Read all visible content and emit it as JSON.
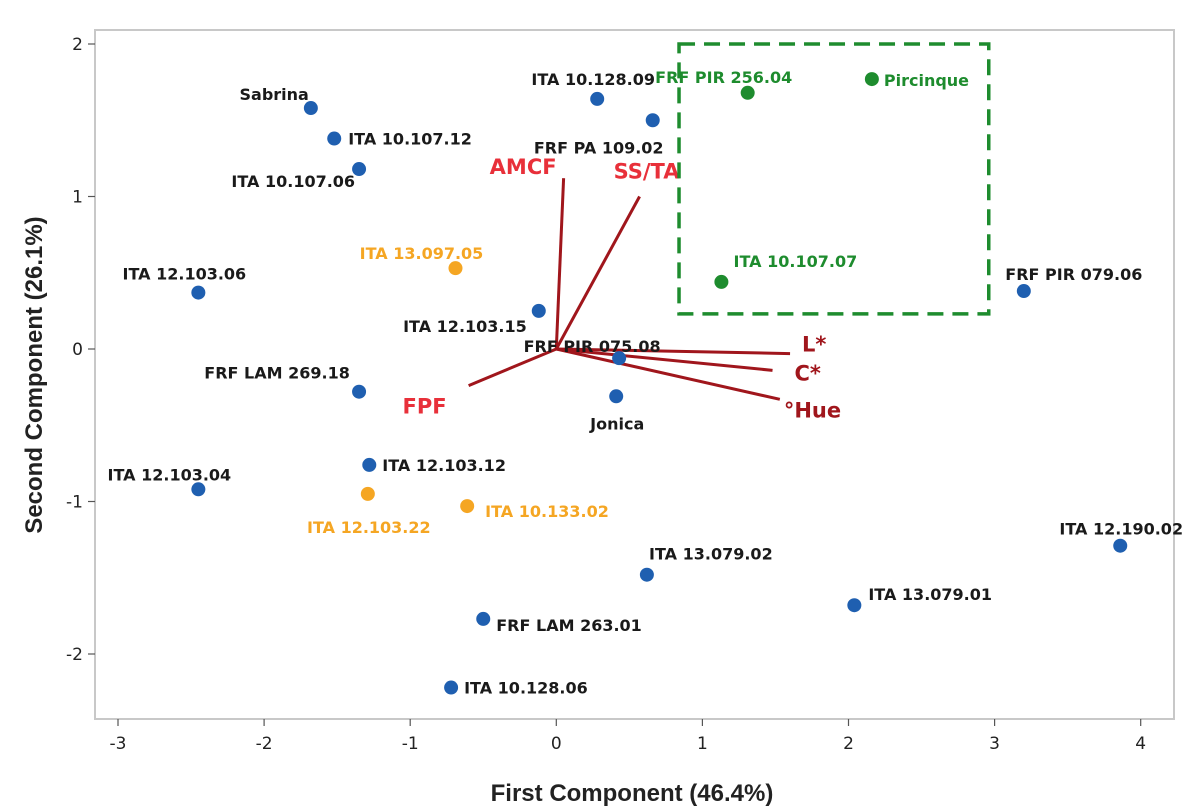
{
  "chart_data": {
    "type": "scatter",
    "subtype": "pca-biplot",
    "xlabel": "First Component (46.4%)",
    "ylabel": "Second Component (26.1%)",
    "xlim": [
      -3.15,
      4.2
    ],
    "ylim": [
      -2.45,
      2.1
    ],
    "xticks": [
      -3,
      -2,
      -1,
      0,
      1,
      2,
      3,
      4
    ],
    "yticks": [
      -2,
      -1,
      0,
      1,
      2
    ],
    "grid": false,
    "colors": {
      "blue": "#1f5fb0",
      "orange": "#f5a623",
      "green": "#1e8c2e",
      "loading": "#a0161c",
      "loading_label_red": "#e8303a",
      "frame": "#c8c8c8",
      "box": "#1e8c2e"
    },
    "points": [
      {
        "label": "Sabrina",
        "x": -1.68,
        "y": 1.58,
        "group": "blue"
      },
      {
        "label": "ITA 10.107.12",
        "x": -1.52,
        "y": 1.38,
        "group": "blue"
      },
      {
        "label": "ITA 10.107.06",
        "x": -1.35,
        "y": 1.18,
        "group": "blue"
      },
      {
        "label": "ITA 10.128.09",
        "x": 0.28,
        "y": 1.64,
        "group": "blue"
      },
      {
        "label": "FRF PA 109.02",
        "x": 0.66,
        "y": 1.5,
        "group": "blue"
      },
      {
        "label": "ITA 12.103.06",
        "x": -2.45,
        "y": 0.37,
        "group": "blue"
      },
      {
        "label": "ITA 12.103.15",
        "x": -0.12,
        "y": 0.25,
        "group": "blue"
      },
      {
        "label": "FRF PIR 075.08",
        "x": 0.43,
        "y": -0.06,
        "group": "blue"
      },
      {
        "label": "FRF LAM 269.18",
        "x": -1.35,
        "y": -0.28,
        "group": "blue"
      },
      {
        "label": "Jonica",
        "x": 0.41,
        "y": -0.31,
        "group": "blue"
      },
      {
        "label": "ITA 12.103.12",
        "x": -1.28,
        "y": -0.76,
        "group": "blue"
      },
      {
        "label": "ITA 12.103.04",
        "x": -2.45,
        "y": -0.92,
        "group": "blue"
      },
      {
        "label": "ITA 13.079.02",
        "x": 0.62,
        "y": -1.48,
        "group": "blue"
      },
      {
        "label": "FRF LAM 263.01",
        "x": -0.5,
        "y": -1.77,
        "group": "blue"
      },
      {
        "label": "ITA 13.079.01",
        "x": 2.04,
        "y": -1.68,
        "group": "blue"
      },
      {
        "label": "ITA 10.128.06",
        "x": -0.72,
        "y": -2.22,
        "group": "blue"
      },
      {
        "label": "FRF PIR 079.06",
        "x": 3.2,
        "y": 0.38,
        "group": "blue"
      },
      {
        "label": "ITA 12.190.02",
        "x": 3.86,
        "y": -1.29,
        "group": "blue"
      },
      {
        "label": "ITA 13.097.05",
        "x": -0.69,
        "y": 0.53,
        "group": "orange"
      },
      {
        "label": "ITA 12.103.22",
        "x": -1.29,
        "y": -0.95,
        "group": "orange"
      },
      {
        "label": "ITA 10.133.02",
        "x": -0.61,
        "y": -1.03,
        "group": "orange"
      },
      {
        "label": "FRF PIR 256.04",
        "x": 1.31,
        "y": 1.68,
        "group": "green"
      },
      {
        "label": "Pircinque",
        "x": 2.16,
        "y": 1.77,
        "group": "green"
      },
      {
        "label": "ITA 10.107.07",
        "x": 1.13,
        "y": 0.44,
        "group": "green"
      }
    ],
    "loadings": [
      {
        "label": "AMCF",
        "x": 0.05,
        "y": 1.12,
        "color": "loading_label_red"
      },
      {
        "label": "SS/TA",
        "x": 0.57,
        "y": 1.0,
        "color": "loading_label_red"
      },
      {
        "label": "L*",
        "x": 1.6,
        "y": -0.03,
        "color": "loading"
      },
      {
        "label": "C*",
        "x": 1.48,
        "y": -0.14,
        "color": "loading"
      },
      {
        "label": "°Hue",
        "x": 1.53,
        "y": -0.33,
        "color": "loading"
      },
      {
        "label": "FPF",
        "x": -0.6,
        "y": -0.24,
        "color": "loading_label_red"
      }
    ]
  }
}
